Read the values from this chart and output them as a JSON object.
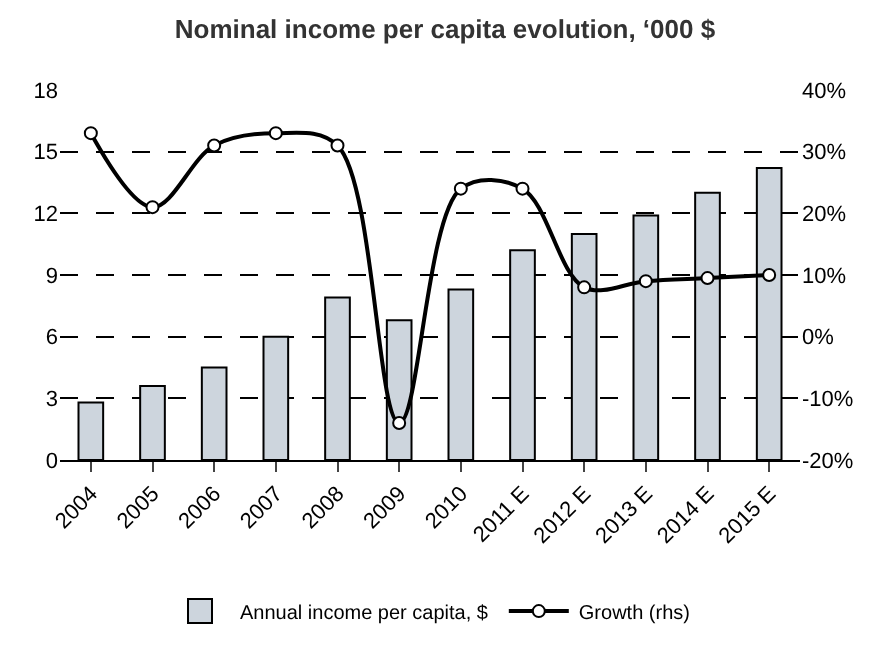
{
  "chart_data": {
    "type": "bar",
    "title": "Nominal income per capita evolution, ‘000 $",
    "categories": [
      "2004",
      "2005",
      "2006",
      "2007",
      "2008",
      "2009",
      "2010",
      "2011 E",
      "2012 E",
      "2013 E",
      "2014 E",
      "2015 E"
    ],
    "series": [
      {
        "name": "Annual income per capita, $",
        "color": "#cdd5dd",
        "values": [
          2.8,
          3.6,
          4.5,
          6.0,
          7.9,
          6.8,
          8.3,
          10.2,
          11.0,
          11.9,
          13.0,
          14.2
        ]
      },
      {
        "name": "Growth (rhs)",
        "type": "line",
        "axis": "y2",
        "color": "#000000",
        "marker": "circle",
        "values": [
          33,
          21,
          31,
          33,
          31,
          -14,
          24,
          24,
          8,
          9,
          9.5,
          10
        ]
      }
    ],
    "ylim": [
      0,
      18
    ],
    "yticks": [
      0,
      3,
      6,
      9,
      12,
      15,
      18
    ],
    "y2lim": [
      -20,
      40
    ],
    "y2ticks": [
      {
        "value": -20,
        "label": "-20%"
      },
      {
        "value": -10,
        "label": "-10%"
      },
      {
        "value": 0,
        "label": "0%"
      },
      {
        "value": 10,
        "label": "10%"
      },
      {
        "value": 20,
        "label": "20%"
      },
      {
        "value": 30,
        "label": "30%"
      },
      {
        "value": 40,
        "label": "40%"
      }
    ],
    "grid": "y",
    "legend": "bottom"
  }
}
